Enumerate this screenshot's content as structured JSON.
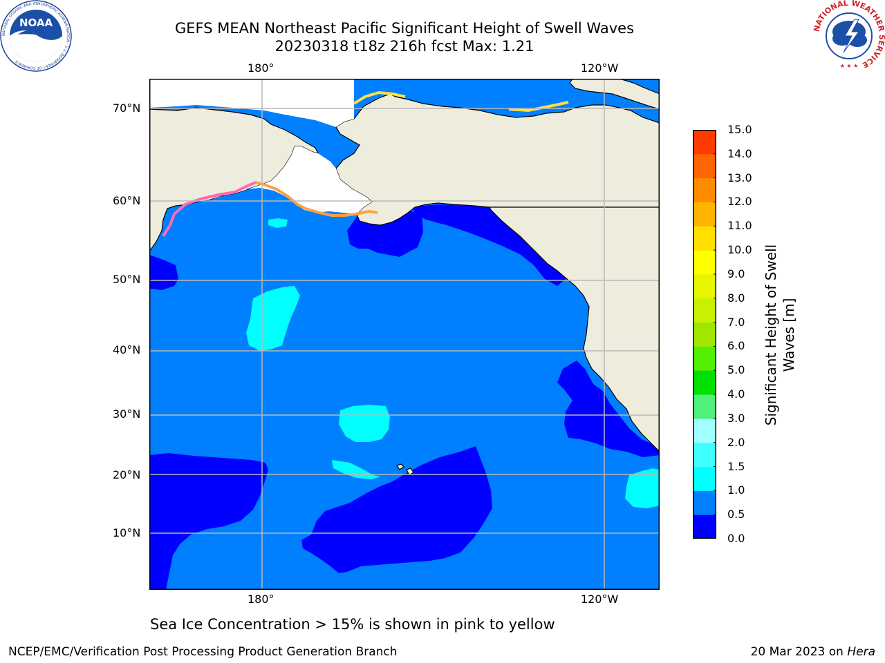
{
  "title": {
    "line1": "GEFS MEAN Northeast Pacific Significant Height of Swell Waves",
    "line2": "20230318 t18z 216h fcst   Max: 1.21"
  },
  "axes": {
    "lon_ticks_top": [
      "180°",
      "120°W"
    ],
    "lon_ticks_bottom": [
      "180°",
      "120°W"
    ],
    "lat_ticks": [
      "70°N",
      "60°N",
      "50°N",
      "40°N",
      "30°N",
      "20°N",
      "10°N"
    ]
  },
  "colorbar": {
    "label_line1": "Significant Height of Swell",
    "label_line2": "Waves [m]",
    "ticks": [
      "15.0",
      "14.0",
      "13.0",
      "12.0",
      "11.0",
      "10.0",
      "9.0",
      "8.0",
      "7.0",
      "6.0",
      "5.0",
      "4.0",
      "3.0",
      "2.0",
      "1.5",
      "1.0",
      "0.5",
      "0.0"
    ],
    "colors": [
      "#0000ff",
      "#0080ff",
      "#00ffff",
      "#40ffff",
      "#a0ffff",
      "#50f07a",
      "#00e000",
      "#50f000",
      "#a0e600",
      "#c8f000",
      "#e6f500",
      "#ffff00",
      "#ffe000",
      "#ffb400",
      "#ff8c00",
      "#ff6400",
      "#ff3c00",
      "#ff0000"
    ]
  },
  "map": {
    "land_color": "#eeecdc",
    "ocean_base_color": "#0080ff",
    "low_swell_color": "#0000ff",
    "mid_swell_color": "#00ffff",
    "ice_edge_colors": [
      "#ff69b4",
      "#ffa040",
      "#ffe040"
    ]
  },
  "caption": "Sea Ice Concentration > 15% is shown in pink to yellow",
  "footer": {
    "left": "NCEP/EMC/Verification Post Processing Product Generation Branch",
    "right_date": "20 Mar 2023 on ",
    "right_host": "Hera"
  },
  "logos": {
    "noaa_text": "NOAA",
    "noaa_ring": "NATIONAL OCEANIC AND ATMOSPHERIC ADMINISTRATION · U.S. DEPARTMENT OF COMMERCE",
    "nws_ring": "NATIONAL WEATHER SERVICE"
  }
}
